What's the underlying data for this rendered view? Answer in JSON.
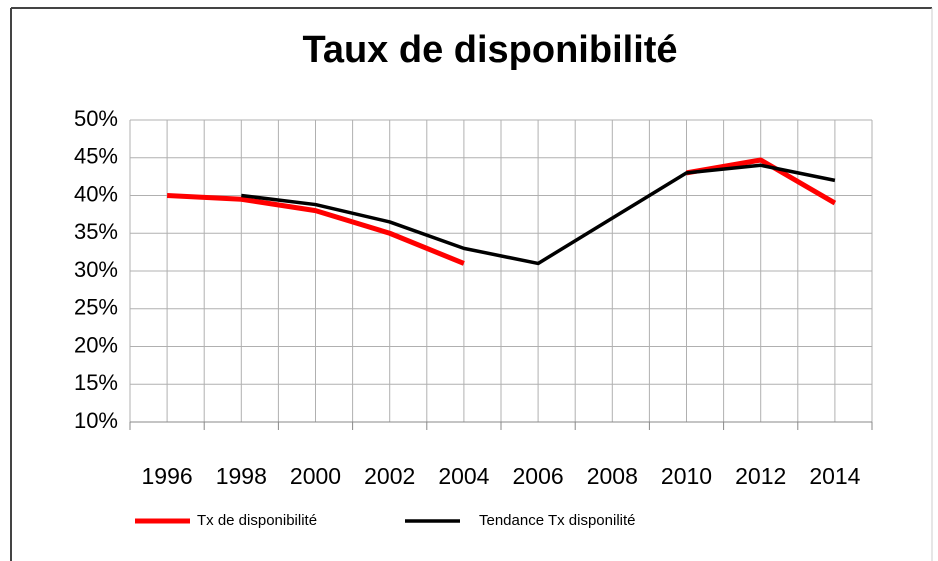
{
  "chart_data": {
    "type": "line",
    "title": "Taux de disponibilité",
    "categories": [
      "1996",
      "1998",
      "2000",
      "2002",
      "2004",
      "2006",
      "2008",
      "2010",
      "2012",
      "2014"
    ],
    "series": [
      {
        "name": "Tx de disponibilité",
        "color": "#ff0000",
        "values": [
          40,
          39.5,
          38,
          35,
          31,
          null,
          null,
          43,
          44.7,
          39
        ]
      },
      {
        "name": "Tendance Tx disponilité",
        "color": "#000000",
        "values": [
          null,
          40,
          38.8,
          36.5,
          33,
          31,
          37,
          43,
          44,
          42
        ]
      }
    ],
    "ylim": [
      10,
      50
    ],
    "yticks": [
      {
        "value": 10,
        "label": "10%"
      },
      {
        "value": 15,
        "label": "15%"
      },
      {
        "value": 20,
        "label": "20%"
      },
      {
        "value": 25,
        "label": "25%"
      },
      {
        "value": 30,
        "label": "30%"
      },
      {
        "value": 35,
        "label": "35%"
      },
      {
        "value": 40,
        "label": "40%"
      },
      {
        "value": 45,
        "label": "45%"
      },
      {
        "value": 50,
        "label": "50%"
      }
    ],
    "grid": true,
    "legend": "bottom"
  }
}
